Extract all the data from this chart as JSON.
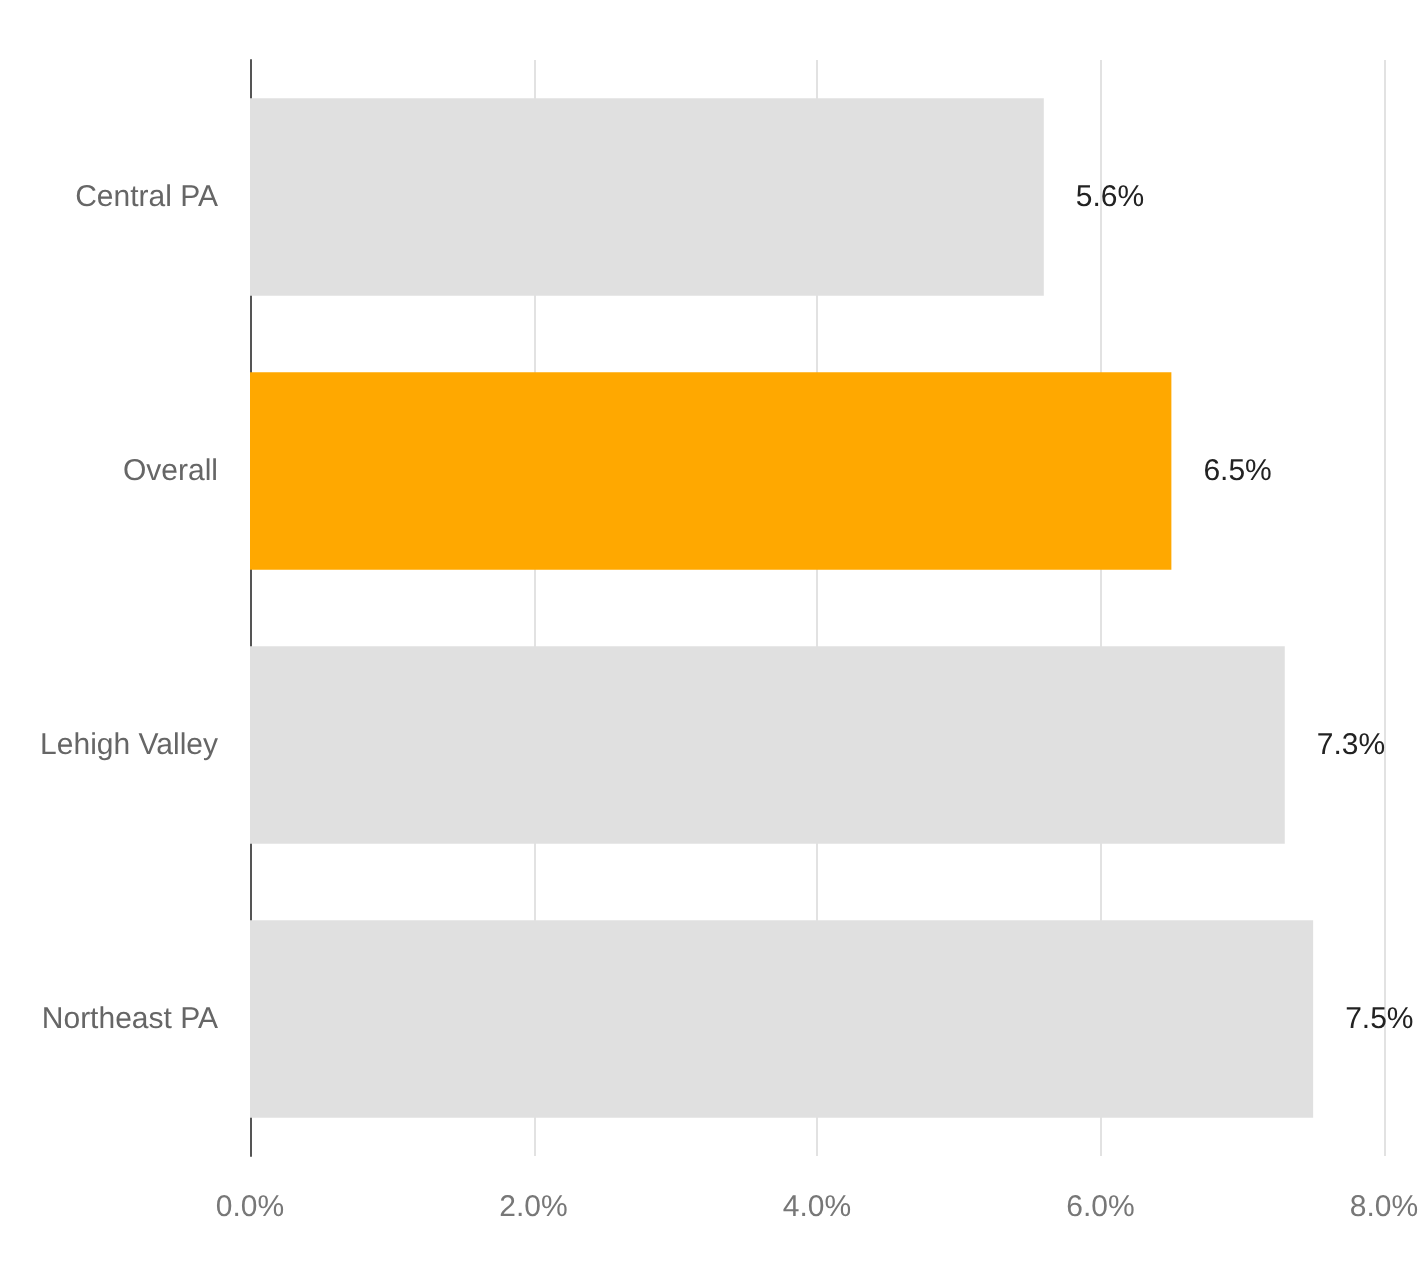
{
  "chart_data": {
    "type": "bar",
    "orientation": "horizontal",
    "categories": [
      "Central PA",
      "Overall",
      "Lehigh Valley",
      "Northeast PA"
    ],
    "values": [
      5.6,
      6.5,
      7.3,
      7.5
    ],
    "colors": [
      "#e0e0e0",
      "#ffa800",
      "#e0e0e0",
      "#e0e0e0"
    ],
    "value_labels": [
      "5.6%",
      "6.5%",
      "7.3%",
      "7.5%"
    ],
    "xlim": [
      0,
      8
    ],
    "xticks": [
      {
        "value": 0,
        "label": "0.0%"
      },
      {
        "value": 2,
        "label": "2.0%"
      },
      {
        "value": 4,
        "label": "4.0%"
      },
      {
        "value": 6,
        "label": "6.0%"
      },
      {
        "value": 8,
        "label": "8.0%"
      }
    ],
    "grid": "x"
  }
}
